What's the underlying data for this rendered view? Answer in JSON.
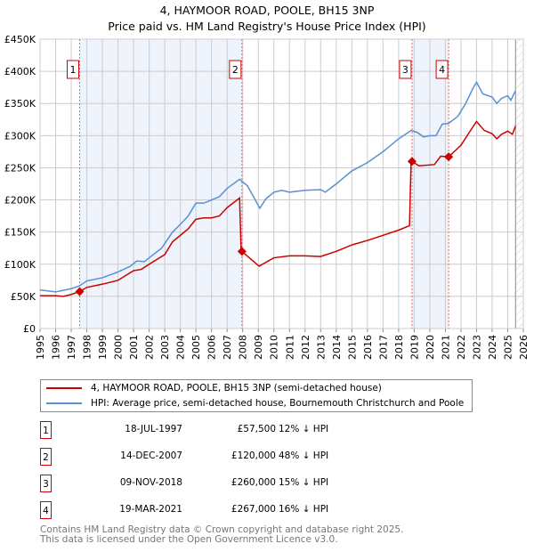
{
  "chart_data": {
    "type": "line",
    "title": "4, HAYMOOR ROAD, POOLE, BH15 3NP",
    "subtitle": "Price paid vs. HM Land Registry's House Price Index (HPI)",
    "xlim": [
      1995,
      2026
    ],
    "ylim": [
      0,
      450000
    ],
    "x_ticks": [
      "1995",
      "1996",
      "1997",
      "1998",
      "1999",
      "2000",
      "2001",
      "2002",
      "2003",
      "2004",
      "2005",
      "2006",
      "2007",
      "2008",
      "2009",
      "2010",
      "2011",
      "2012",
      "2013",
      "2014",
      "2015",
      "2016",
      "2017",
      "2018",
      "2019",
      "2020",
      "2021",
      "2022",
      "2023",
      "2024",
      "2025",
      "2026"
    ],
    "y_ticks": [
      {
        "v": 0,
        "label": "£0"
      },
      {
        "v": 50000,
        "label": "£50K"
      },
      {
        "v": 100000,
        "label": "£100K"
      },
      {
        "v": 150000,
        "label": "£150K"
      },
      {
        "v": 200000,
        "label": "£200K"
      },
      {
        "v": 250000,
        "label": "£250K"
      },
      {
        "v": 300000,
        "label": "£300K"
      },
      {
        "v": 350000,
        "label": "£350K"
      },
      {
        "v": 400000,
        "label": "£400K"
      },
      {
        "v": 450000,
        "label": "£450K"
      }
    ],
    "grid": true,
    "shaded_ranges": [
      [
        1997.54,
        2007.95
      ],
      [
        2018.86,
        2021.21
      ]
    ],
    "forecast_from": 2025.5,
    "series": [
      {
        "name": "4, HAYMOOR ROAD, POOLE, BH15 3NP (semi-detached house)",
        "color": "#cc0000",
        "points": [
          [
            1995,
            51
          ],
          [
            1996,
            51
          ],
          [
            1996.5,
            50
          ],
          [
            1997,
            53
          ],
          [
            1997.54,
            57.5
          ],
          [
            1998,
            64
          ],
          [
            1999,
            69
          ],
          [
            2000,
            75
          ],
          [
            2001,
            90
          ],
          [
            2001.5,
            92
          ],
          [
            2002,
            100
          ],
          [
            2003,
            115
          ],
          [
            2003.5,
            135
          ],
          [
            2004.5,
            155
          ],
          [
            2005,
            170
          ],
          [
            2005.5,
            172
          ],
          [
            2006,
            172
          ],
          [
            2006.5,
            175
          ],
          [
            2007,
            188
          ],
          [
            2007.8,
            203
          ],
          [
            2007.9,
            120
          ],
          [
            2007.95,
            120
          ],
          [
            2009.05,
            97
          ],
          [
            2010,
            110
          ],
          [
            2011,
            113
          ],
          [
            2012,
            113
          ],
          [
            2013,
            112
          ],
          [
            2014,
            120
          ],
          [
            2015,
            130
          ],
          [
            2016,
            137
          ],
          [
            2017,
            145
          ],
          [
            2018,
            153
          ],
          [
            2018.7,
            160
          ],
          [
            2018.8,
            260
          ],
          [
            2018.86,
            260
          ],
          [
            2019.3,
            253
          ],
          [
            2020.3,
            255
          ],
          [
            2020.7,
            268
          ],
          [
            2021.21,
            267
          ],
          [
            2022,
            285
          ],
          [
            2022.8,
            315
          ],
          [
            2023,
            322
          ],
          [
            2023.5,
            308
          ],
          [
            2024,
            303
          ],
          [
            2024.3,
            295
          ],
          [
            2024.6,
            302
          ],
          [
            2025,
            307
          ],
          [
            2025.3,
            302
          ],
          [
            2025.5,
            315
          ]
        ]
      },
      {
        "name": "HPI: Average price, semi-detached house, Bournemouth Christchurch and Poole",
        "color": "#5b8fd4",
        "points": [
          [
            1995,
            60
          ],
          [
            1996,
            57
          ],
          [
            1997,
            62
          ],
          [
            1997.5,
            66
          ],
          [
            1998,
            74
          ],
          [
            1999,
            79
          ],
          [
            2000,
            88
          ],
          [
            2000.8,
            97
          ],
          [
            2001.2,
            105
          ],
          [
            2001.7,
            104
          ],
          [
            2002,
            110
          ],
          [
            2002.8,
            125
          ],
          [
            2003.5,
            150
          ],
          [
            2004,
            162
          ],
          [
            2004.5,
            175
          ],
          [
            2005,
            195
          ],
          [
            2005.5,
            195
          ],
          [
            2006,
            200
          ],
          [
            2006.5,
            205
          ],
          [
            2007,
            218
          ],
          [
            2007.8,
            232
          ],
          [
            2008.3,
            222
          ],
          [
            2009.1,
            187
          ],
          [
            2009.5,
            202
          ],
          [
            2010,
            212
          ],
          [
            2010.5,
            215
          ],
          [
            2011,
            212
          ],
          [
            2012,
            215
          ],
          [
            2013,
            216
          ],
          [
            2013.3,
            212
          ],
          [
            2014,
            225
          ],
          [
            2015,
            245
          ],
          [
            2016,
            258
          ],
          [
            2017,
            275
          ],
          [
            2017.5,
            285
          ],
          [
            2018,
            295
          ],
          [
            2018.8,
            308
          ],
          [
            2019.2,
            305
          ],
          [
            2019.6,
            298
          ],
          [
            2020,
            300
          ],
          [
            2020.4,
            300
          ],
          [
            2020.8,
            318
          ],
          [
            2021.2,
            319
          ],
          [
            2021.8,
            330
          ],
          [
            2022.3,
            350
          ],
          [
            2022.8,
            375
          ],
          [
            2023,
            383
          ],
          [
            2023.4,
            365
          ],
          [
            2024,
            360
          ],
          [
            2024.3,
            350
          ],
          [
            2024.6,
            358
          ],
          [
            2025,
            362
          ],
          [
            2025.2,
            355
          ],
          [
            2025.5,
            370
          ]
        ]
      }
    ],
    "sales": [
      {
        "id": "1",
        "x": 1997.54,
        "price": 57500,
        "date": "18-JUL-1997",
        "price_label": "£57,500",
        "hpi": "12% ↓ HPI"
      },
      {
        "id": "2",
        "x": 2007.95,
        "price": 120000,
        "date": "14-DEC-2007",
        "price_label": "£120,000",
        "hpi": "48% ↓ HPI"
      },
      {
        "id": "3",
        "x": 2018.86,
        "price": 260000,
        "date": "09-NOV-2018",
        "price_label": "£260,000",
        "hpi": "15% ↓ HPI"
      },
      {
        "id": "4",
        "x": 2021.21,
        "price": 267000,
        "date": "19-MAR-2021",
        "price_label": "£267,000",
        "hpi": "16% ↓ HPI"
      }
    ]
  },
  "legend": {
    "red": "4, HAYMOOR ROAD, POOLE, BH15 3NP (semi-detached house)",
    "blue": "HPI: Average price, semi-detached house, Bournemouth Christchurch and Poole"
  },
  "footer": {
    "line1": "Contains HM Land Registry data © Crown copyright and database right 2025.",
    "line2": "This data is licensed under the Open Government Licence v3.0."
  }
}
